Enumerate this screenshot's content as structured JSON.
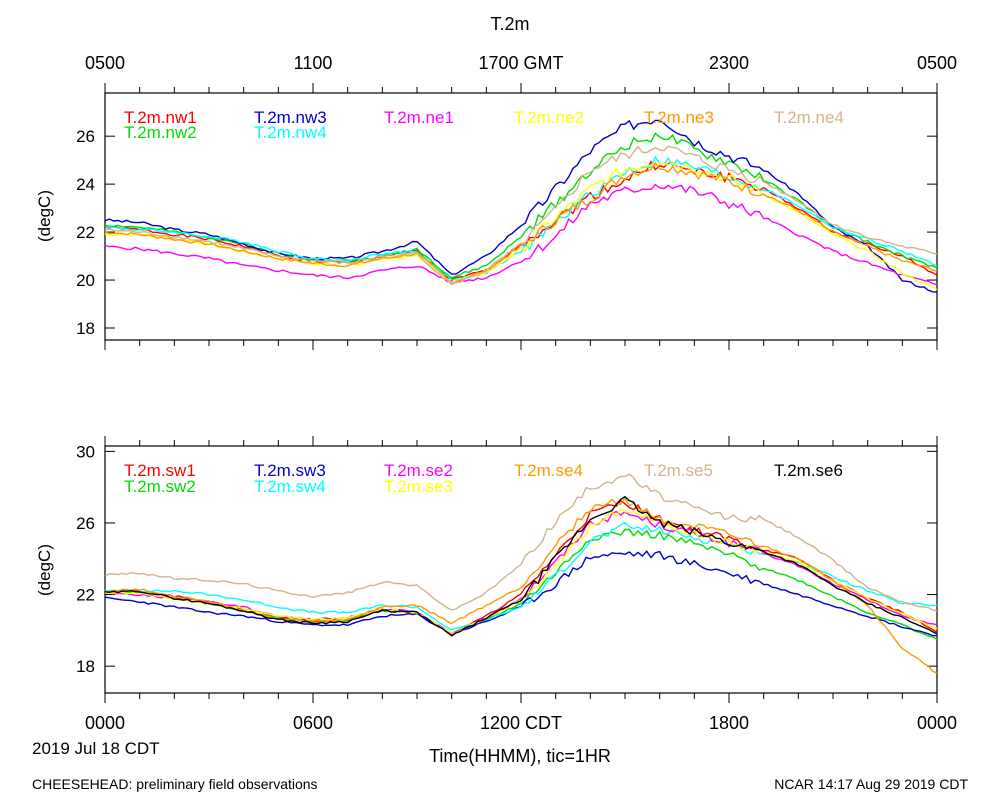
{
  "figure": {
    "title": "T.2m",
    "top_axis_ticks": [
      "0500",
      "1100",
      "1700 GMT",
      "2300",
      "0500"
    ],
    "bottom_axis_ticks": [
      "0000",
      "0600",
      "1200 CDT",
      "1800",
      "0000"
    ],
    "date_label": "2019 Jul 18 CDT",
    "xlabel": "Time(HHMM), tic=1HR",
    "footer_left": "CHEESEHEAD: preliminary field observations",
    "footer_right": "NCAR 14:17 Aug 29 2019 CDT"
  },
  "chart_data": [
    {
      "type": "line",
      "panel": "top",
      "ylabel": "(degC)",
      "xlim": [
        0,
        24
      ],
      "ylim": [
        17.5,
        27.8
      ],
      "yticks": [
        18,
        20,
        22,
        24,
        26
      ],
      "x": [
        0,
        1,
        2,
        3,
        4,
        5,
        6,
        7,
        8,
        9,
        10,
        11,
        12,
        13,
        14,
        15,
        16,
        17,
        18,
        19,
        20,
        21,
        22,
        23,
        24
      ],
      "series": [
        {
          "name": "T.2m.nw1",
          "color": "#ff0000",
          "values": [
            22.2,
            22.1,
            21.9,
            21.7,
            21.4,
            21.0,
            20.8,
            20.7,
            21.0,
            21.2,
            20.0,
            20.4,
            21.5,
            22.5,
            23.5,
            24.2,
            24.9,
            24.5,
            24.3,
            23.8,
            23.0,
            22.0,
            21.5,
            21.0,
            20.2
          ]
        },
        {
          "name": "T.2m.nw2",
          "color": "#00dd00",
          "values": [
            22.3,
            22.2,
            22.0,
            21.8,
            21.5,
            21.1,
            20.9,
            20.8,
            21.0,
            21.3,
            20.1,
            20.6,
            21.8,
            23.2,
            24.6,
            25.6,
            26.1,
            25.4,
            24.9,
            24.2,
            23.3,
            22.2,
            21.6,
            21.0,
            20.5
          ]
        },
        {
          "name": "T.2m.nw3",
          "color": "#0000cc",
          "values": [
            22.5,
            22.4,
            22.1,
            21.9,
            21.5,
            21.1,
            20.9,
            20.9,
            21.2,
            21.6,
            20.2,
            21.0,
            22.3,
            23.8,
            25.4,
            26.4,
            26.8,
            25.8,
            25.2,
            24.6,
            23.6,
            22.2,
            21.4,
            20.0,
            19.5
          ]
        },
        {
          "name": "T.2m.nw4",
          "color": "#00ffff",
          "values": [
            22.2,
            22.1,
            22.0,
            21.8,
            21.6,
            21.2,
            20.9,
            20.8,
            21.1,
            21.2,
            20.0,
            20.3,
            21.2,
            22.4,
            23.6,
            24.5,
            25.0,
            24.7,
            24.3,
            23.8,
            23.1,
            22.2,
            21.7,
            21.2,
            20.6
          ]
        },
        {
          "name": "T.2m.ne1",
          "color": "#ff00ff",
          "values": [
            21.4,
            21.3,
            21.1,
            20.9,
            20.6,
            20.4,
            20.2,
            20.1,
            20.4,
            20.6,
            19.9,
            20.1,
            20.8,
            21.8,
            23.2,
            23.7,
            24.0,
            23.7,
            23.2,
            22.6,
            21.9,
            21.2,
            20.7,
            20.2,
            19.8
          ]
        },
        {
          "name": "T.2m.ne2",
          "color": "#ffff00",
          "values": [
            21.9,
            21.9,
            21.7,
            21.5,
            21.2,
            20.9,
            20.7,
            20.6,
            20.9,
            21.0,
            19.9,
            20.3,
            21.3,
            22.6,
            23.8,
            24.6,
            25.0,
            24.7,
            24.2,
            23.6,
            22.8,
            21.9,
            21.2,
            20.3,
            19.6
          ]
        },
        {
          "name": "T.2m.ne3",
          "color": "#ff9900",
          "values": [
            22.0,
            21.9,
            21.7,
            21.5,
            21.2,
            20.9,
            20.7,
            20.6,
            20.9,
            21.1,
            19.9,
            20.4,
            21.4,
            22.5,
            23.4,
            24.4,
            24.8,
            24.5,
            24.1,
            23.6,
            22.9,
            22.0,
            21.4,
            20.8,
            20.4
          ]
        },
        {
          "name": "T.2m.ne4",
          "color": "#d2b48c",
          "values": [
            22.1,
            22.0,
            21.8,
            21.6,
            21.3,
            21.0,
            20.8,
            20.7,
            21.0,
            21.1,
            19.8,
            20.4,
            21.5,
            22.9,
            24.6,
            25.2,
            25.6,
            25.1,
            24.6,
            24.1,
            23.3,
            22.3,
            21.8,
            21.4,
            21.1
          ]
        }
      ]
    },
    {
      "type": "line",
      "panel": "bottom",
      "ylabel": "(degC)",
      "xlim": [
        0,
        24
      ],
      "ylim": [
        16.5,
        30.3
      ],
      "yticks": [
        18,
        22,
        26,
        30
      ],
      "x": [
        0,
        1,
        2,
        3,
        4,
        5,
        6,
        7,
        8,
        9,
        10,
        11,
        12,
        13,
        14,
        15,
        16,
        17,
        18,
        19,
        20,
        21,
        22,
        23,
        24
      ],
      "series": [
        {
          "name": "T.2m.sw1",
          "color": "#ff0000",
          "values": [
            22.1,
            22.2,
            21.9,
            21.6,
            21.2,
            20.7,
            20.5,
            20.6,
            21.2,
            21.0,
            19.8,
            20.8,
            22.0,
            24.2,
            26.5,
            27.2,
            26.2,
            25.6,
            25.1,
            24.5,
            24.0,
            22.8,
            21.8,
            21.0,
            19.9
          ]
        },
        {
          "name": "T.2m.sw2",
          "color": "#00dd00",
          "values": [
            22.2,
            22.1,
            21.8,
            21.5,
            21.1,
            20.7,
            20.5,
            20.6,
            21.1,
            21.0,
            19.8,
            20.6,
            21.5,
            23.2,
            25.2,
            25.5,
            25.3,
            24.8,
            24.2,
            23.5,
            22.8,
            21.9,
            21.0,
            20.3,
            19.5
          ]
        },
        {
          "name": "T.2m.sw3",
          "color": "#0000cc",
          "values": [
            21.8,
            21.6,
            21.3,
            21.0,
            20.8,
            20.5,
            20.3,
            20.3,
            20.8,
            20.9,
            19.8,
            20.5,
            21.3,
            22.6,
            24.1,
            24.3,
            24.2,
            23.7,
            23.2,
            22.6,
            22.0,
            21.4,
            20.8,
            20.2,
            19.7
          ]
        },
        {
          "name": "T.2m.sw4",
          "color": "#00ffff",
          "values": [
            22.2,
            22.2,
            22.2,
            22.0,
            21.7,
            21.3,
            21.0,
            21.0,
            21.4,
            21.3,
            20.0,
            20.6,
            21.3,
            23.0,
            25.0,
            25.8,
            25.6,
            25.2,
            24.8,
            24.3,
            23.8,
            23.0,
            22.2,
            21.5,
            21.4
          ]
        },
        {
          "name": "T.2m.se2",
          "color": "#ff00ff",
          "values": [
            22.1,
            22.0,
            21.8,
            21.6,
            21.3,
            20.8,
            20.6,
            20.7,
            21.2,
            21.0,
            19.8,
            20.7,
            21.8,
            23.8,
            26.0,
            26.6,
            25.9,
            25.4,
            24.9,
            24.3,
            23.6,
            22.6,
            21.7,
            20.8,
            20.3
          ]
        },
        {
          "name": "T.2m.se3",
          "color": "#ffff00",
          "values": [
            22.1,
            22.1,
            21.8,
            21.5,
            21.2,
            20.8,
            20.6,
            20.7,
            21.2,
            21.0,
            19.8,
            20.7,
            21.7,
            23.6,
            25.8,
            26.8,
            26.0,
            25.4,
            24.9,
            24.4,
            23.8,
            22.8,
            21.8,
            20.9,
            20.1
          ]
        },
        {
          "name": "T.2m.se4",
          "color": "#ff9900",
          "values": [
            22.2,
            22.3,
            21.9,
            21.6,
            21.1,
            20.6,
            20.5,
            20.6,
            21.3,
            21.4,
            20.4,
            21.4,
            22.4,
            24.8,
            26.8,
            27.3,
            26.2,
            25.8,
            25.3,
            24.7,
            24.0,
            22.8,
            21.4,
            19.0,
            17.6
          ]
        },
        {
          "name": "T.2m.se5",
          "color": "#d2b48c",
          "values": [
            23.1,
            23.2,
            22.9,
            22.8,
            22.6,
            22.2,
            21.9,
            22.1,
            22.7,
            22.5,
            21.1,
            22.1,
            23.7,
            26.1,
            28.0,
            28.7,
            27.5,
            26.8,
            26.3,
            26.2,
            25.2,
            23.9,
            22.4,
            21.6,
            21.1
          ]
        },
        {
          "name": "T.2m.se6",
          "color": "#000000",
          "values": [
            22.1,
            22.2,
            21.8,
            21.5,
            21.1,
            20.6,
            20.4,
            20.5,
            21.1,
            21.0,
            19.7,
            20.7,
            21.7,
            24.0,
            26.2,
            27.3,
            26.0,
            25.5,
            24.9,
            24.4,
            23.7,
            22.5,
            21.5,
            20.7,
            19.8
          ]
        }
      ]
    }
  ]
}
